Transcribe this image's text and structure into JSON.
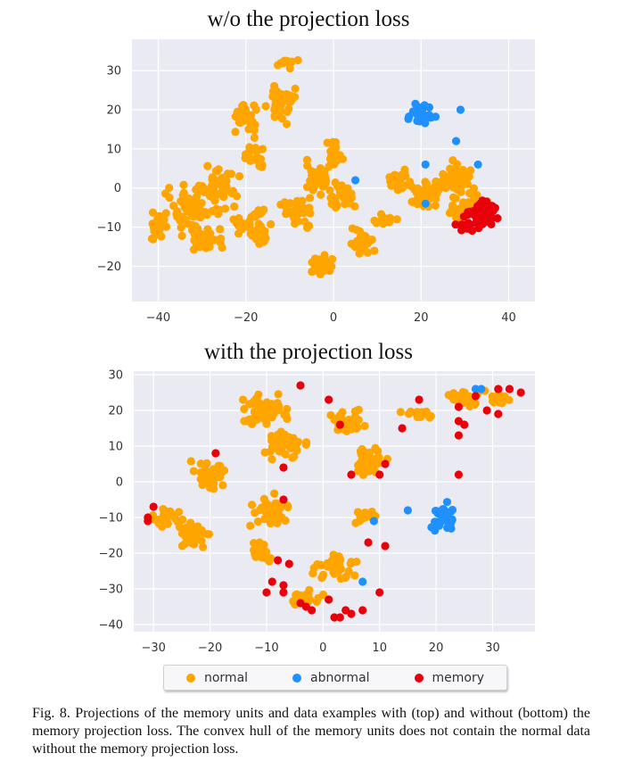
{
  "figure": {
    "caption": "Fig. 8.   Projections of the memory units and data examples with (top) and without (bottom) the memory projection loss. The convex hull of the memory units does not contain the normal data without the memory projection loss."
  },
  "legend": {
    "items": [
      {
        "label": "normal",
        "color": "#ffa500"
      },
      {
        "label": "abnormal",
        "color": "#1e90ff"
      },
      {
        "label": "memory",
        "color": "#e8000b"
      }
    ],
    "placement": "bottom-center"
  },
  "chart_data": [
    {
      "type": "scatter",
      "title": "w/o the projection loss",
      "xlabel": "",
      "ylabel": "",
      "xlim": [
        -46,
        46
      ],
      "ylim": [
        -29,
        38
      ],
      "xticks": [
        -40,
        -20,
        0,
        20,
        40
      ],
      "yticks": [
        30,
        20,
        10,
        0,
        -10,
        -20
      ],
      "grid": true,
      "background": "#eaeaf2",
      "series": [
        {
          "name": "normal",
          "color": "#ffa500",
          "clusters": [
            {
              "cx": -40,
              "cy": -10,
              "rx": 4,
              "ry": 5,
              "n": 30
            },
            {
              "cx": -33,
              "cy": -5,
              "rx": 7,
              "ry": 8,
              "n": 60
            },
            {
              "cx": -26,
              "cy": 0,
              "rx": 6,
              "ry": 7,
              "n": 50
            },
            {
              "cx": -30,
              "cy": -13,
              "rx": 6,
              "ry": 4,
              "n": 30
            },
            {
              "cx": -20,
              "cy": 18,
              "rx": 4,
              "ry": 6,
              "n": 35
            },
            {
              "cx": -12,
              "cy": 22,
              "rx": 4,
              "ry": 7,
              "n": 45
            },
            {
              "cx": -10,
              "cy": 32,
              "rx": 4,
              "ry": 2,
              "n": 12
            },
            {
              "cx": -18,
              "cy": 8,
              "rx": 3,
              "ry": 5,
              "n": 20
            },
            {
              "cx": -18,
              "cy": -10,
              "rx": 6,
              "ry": 6,
              "n": 45
            },
            {
              "cx": -8,
              "cy": -6,
              "rx": 5,
              "ry": 5,
              "n": 35
            },
            {
              "cx": -4,
              "cy": 2,
              "rx": 4,
              "ry": 6,
              "n": 35
            },
            {
              "cx": -3,
              "cy": -20,
              "rx": 4,
              "ry": 4,
              "n": 30
            },
            {
              "cx": 0,
              "cy": 8,
              "rx": 3,
              "ry": 5,
              "n": 20
            },
            {
              "cx": 6,
              "cy": -14,
              "rx": 4,
              "ry": 5,
              "n": 25
            },
            {
              "cx": 2,
              "cy": -2,
              "rx": 5,
              "ry": 5,
              "n": 30
            },
            {
              "cx": 12,
              "cy": -8,
              "rx": 4,
              "ry": 3,
              "n": 12
            },
            {
              "cx": 15,
              "cy": 2,
              "rx": 4,
              "ry": 4,
              "n": 25
            },
            {
              "cx": 21,
              "cy": -2,
              "rx": 5,
              "ry": 5,
              "n": 40
            },
            {
              "cx": 28,
              "cy": 2,
              "rx": 5,
              "ry": 6,
              "n": 50
            },
            {
              "cx": 31,
              "cy": -5,
              "rx": 6,
              "ry": 5,
              "n": 45
            }
          ]
        },
        {
          "name": "abnormal",
          "color": "#1e90ff",
          "clusters": [
            {
              "cx": 20,
              "cy": 19,
              "rx": 4,
              "ry": 4,
              "n": 30
            }
          ],
          "points": [
            [
              5,
              2
            ],
            [
              21,
              -4
            ],
            [
              21,
              6
            ],
            [
              28,
              12
            ],
            [
              33,
              6
            ],
            [
              29,
              20
            ]
          ]
        },
        {
          "name": "memory",
          "color": "#e8000b",
          "clusters": [
            {
              "cx": 34,
              "cy": -6,
              "rx": 5,
              "ry": 5,
              "n": 55
            },
            {
              "cx": 30,
              "cy": -10,
              "rx": 3,
              "ry": 2,
              "n": 12
            }
          ]
        }
      ]
    },
    {
      "type": "scatter",
      "title": "with the projection loss",
      "xlabel": "",
      "ylabel": "",
      "xlim": [
        -33.5,
        37.5
      ],
      "ylim": [
        -42,
        31
      ],
      "xticks": [
        -30,
        -20,
        -10,
        0,
        10,
        20,
        30
      ],
      "yticks": [
        30,
        20,
        10,
        0,
        -10,
        -20,
        -30,
        -40
      ],
      "grid": true,
      "background": "#eaeaf2",
      "series": [
        {
          "name": "normal",
          "color": "#ffa500",
          "clusters": [
            {
              "cx": -28,
              "cy": -10,
              "rx": 3,
              "ry": 4,
              "n": 30
            },
            {
              "cx": -23,
              "cy": -15,
              "rx": 4,
              "ry": 6,
              "n": 40
            },
            {
              "cx": -20,
              "cy": 2,
              "rx": 4,
              "ry": 6,
              "n": 35
            },
            {
              "cx": -10,
              "cy": 20,
              "rx": 6,
              "ry": 6,
              "n": 60
            },
            {
              "cx": -7,
              "cy": 10,
              "rx": 5,
              "ry": 5,
              "n": 40
            },
            {
              "cx": -9,
              "cy": -8,
              "rx": 5,
              "ry": 6,
              "n": 40
            },
            {
              "cx": -11,
              "cy": -20,
              "rx": 3,
              "ry": 4,
              "n": 25
            },
            {
              "cx": 2,
              "cy": -24,
              "rx": 5,
              "ry": 5,
              "n": 40
            },
            {
              "cx": -3,
              "cy": -32,
              "rx": 4,
              "ry": 3,
              "n": 25
            },
            {
              "cx": 4,
              "cy": 18,
              "rx": 4,
              "ry": 6,
              "n": 35
            },
            {
              "cx": 8,
              "cy": 6,
              "rx": 4,
              "ry": 6,
              "n": 35
            },
            {
              "cx": 8,
              "cy": -10,
              "rx": 3,
              "ry": 3,
              "n": 15
            },
            {
              "cx": 17,
              "cy": 19,
              "rx": 4,
              "ry": 2,
              "n": 20
            },
            {
              "cx": 25,
              "cy": 23,
              "rx": 5,
              "ry": 4,
              "n": 35
            },
            {
              "cx": 31,
              "cy": 23,
              "rx": 3,
              "ry": 2,
              "n": 15
            }
          ]
        },
        {
          "name": "abnormal",
          "color": "#1e90ff",
          "clusters": [
            {
              "cx": 21,
              "cy": -10,
              "rx": 2.5,
              "ry": 5,
              "n": 40
            }
          ],
          "points": [
            [
              15,
              -8
            ],
            [
              9,
              -11
            ],
            [
              7,
              -28
            ],
            [
              27,
              26
            ],
            [
              28,
              26
            ]
          ]
        },
        {
          "name": "memory",
          "color": "#e8000b",
          "points": [
            [
              -31,
              -10
            ],
            [
              -30,
              -7
            ],
            [
              -31,
              -11
            ],
            [
              -19,
              8
            ],
            [
              -9,
              -28
            ],
            [
              -7,
              -29
            ],
            [
              -7,
              -31
            ],
            [
              -10,
              -31
            ],
            [
              -8,
              -22
            ],
            [
              -7,
              4
            ],
            [
              -7,
              -5
            ],
            [
              -6,
              -23
            ],
            [
              -4,
              -34
            ],
            [
              -3,
              -35
            ],
            [
              -2,
              -36
            ],
            [
              -4,
              27
            ],
            [
              1,
              23
            ],
            [
              1,
              -33
            ],
            [
              2,
              -38
            ],
            [
              3,
              -38
            ],
            [
              4,
              -36
            ],
            [
              5,
              -37
            ],
            [
              7,
              -36
            ],
            [
              3,
              16
            ],
            [
              5,
              2
            ],
            [
              8,
              -17
            ],
            [
              10,
              -31
            ],
            [
              10,
              2
            ],
            [
              11,
              -18
            ],
            [
              11,
              5
            ],
            [
              14,
              15
            ],
            [
              17,
              23
            ],
            [
              24,
              17
            ],
            [
              24,
              21
            ],
            [
              24,
              13
            ],
            [
              25,
              16
            ],
            [
              27,
              24
            ],
            [
              29,
              20
            ],
            [
              31,
              19
            ],
            [
              33,
              26
            ],
            [
              35,
              25
            ],
            [
              31,
              26
            ],
            [
              24,
              2
            ]
          ]
        }
      ]
    }
  ]
}
